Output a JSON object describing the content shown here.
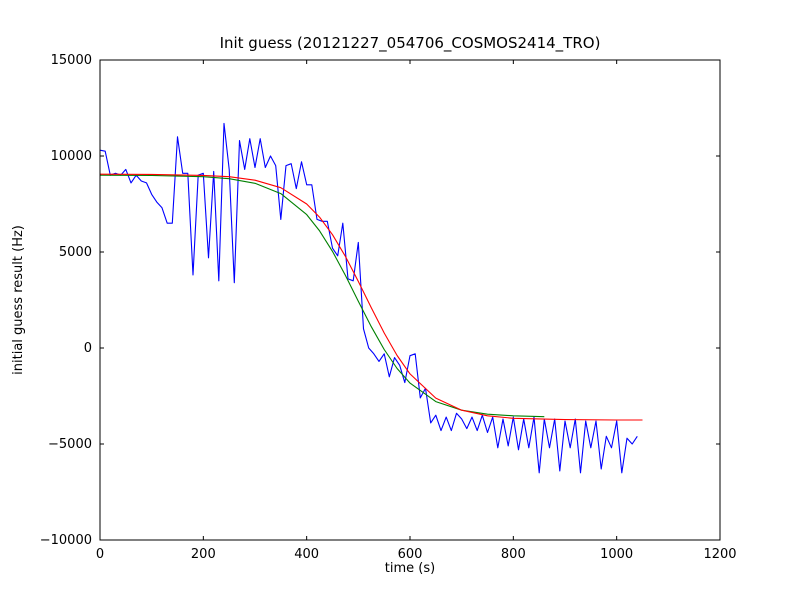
{
  "figure": {
    "title": "Init guess (20121227_054706_COSMOS2414_TRO)",
    "xlabel": "time (s)",
    "ylabel": "initial guess result (Hz)"
  },
  "chart_data": {
    "type": "line",
    "title": "Init guess (20121227_054706_COSMOS2414_TRO)",
    "xlabel": "time (s)",
    "ylabel": "initial guess result (Hz)",
    "xlim": [
      0,
      1200
    ],
    "ylim": [
      -10000,
      15000
    ],
    "xticks": [
      0,
      200,
      400,
      600,
      800,
      1000,
      1200
    ],
    "yticks": [
      -10000,
      -5000,
      0,
      5000,
      10000,
      15000
    ],
    "xtick_labels": [
      "0",
      "200",
      "400",
      "600",
      "800",
      "1000",
      "1200"
    ],
    "ytick_labels": [
      "−10000",
      "−5000",
      "0",
      "5000",
      "10000",
      "15000"
    ],
    "grid": false,
    "legend": null,
    "frame_color": "#000000",
    "series": [
      {
        "name": "measured-initial-guess",
        "color": "#0000ff",
        "x": [
          0,
          10,
          20,
          30,
          40,
          50,
          60,
          70,
          80,
          90,
          100,
          110,
          120,
          130,
          140,
          150,
          160,
          170,
          180,
          190,
          200,
          210,
          220,
          230,
          240,
          250,
          260,
          270,
          280,
          290,
          300,
          310,
          320,
          330,
          340,
          350,
          360,
          370,
          380,
          390,
          400,
          410,
          420,
          430,
          440,
          450,
          460,
          470,
          480,
          490,
          500,
          510,
          520,
          530,
          540,
          550,
          560,
          570,
          580,
          590,
          600,
          610,
          620,
          630,
          640,
          650,
          660,
          670,
          680,
          690,
          700,
          710,
          720,
          730,
          740,
          750,
          760,
          770,
          780,
          790,
          800,
          810,
          820,
          830,
          840,
          850,
          860,
          870,
          880,
          890,
          900,
          910,
          920,
          930,
          940,
          950,
          960,
          970,
          980,
          990,
          1000,
          1010,
          1020,
          1030,
          1040
        ],
        "y": [
          10300,
          10250,
          9000,
          9100,
          9000,
          9300,
          8600,
          9000,
          8700,
          8600,
          8000,
          7600,
          7300,
          6500,
          6500,
          11000,
          9100,
          9100,
          3800,
          9000,
          9100,
          4700,
          9200,
          3500,
          11700,
          9300,
          3400,
          10800,
          9300,
          10900,
          9400,
          10900,
          9400,
          10000,
          9500,
          6700,
          9500,
          9600,
          8300,
          9700,
          8500,
          8500,
          6700,
          6600,
          6600,
          5200,
          4800,
          6500,
          3600,
          3500,
          5500,
          1000,
          0,
          -300,
          -700,
          -300,
          -1500,
          -500,
          -900,
          -1800,
          -400,
          -300,
          -2600,
          -2100,
          -3900,
          -3500,
          -4300,
          -3600,
          -4300,
          -3400,
          -3700,
          -4200,
          -3600,
          -4300,
          -3500,
          -4400,
          -3600,
          -5200,
          -3700,
          -5100,
          -3600,
          -5300,
          -3700,
          -5200,
          -3600,
          -6500,
          -3700,
          -5200,
          -3700,
          -6400,
          -3800,
          -5200,
          -3700,
          -6500,
          -3800,
          -5200,
          -3800,
          -6300,
          -4600,
          -5200,
          -3800,
          -6500,
          -4700,
          -5000,
          -4600
        ]
      },
      {
        "name": "fit-green",
        "color": "#008000",
        "x": [
          0,
          100,
          200,
          250,
          300,
          350,
          400,
          425,
          450,
          475,
          500,
          525,
          550,
          575,
          600,
          650,
          700,
          750,
          800,
          860
        ],
        "y": [
          9000,
          8990,
          8920,
          8820,
          8580,
          8040,
          6950,
          6100,
          5030,
          3780,
          2430,
          1110,
          -80,
          -1070,
          -1830,
          -2790,
          -3240,
          -3450,
          -3530,
          -3580
        ]
      },
      {
        "name": "fit-red",
        "color": "#ff0000",
        "x": [
          0,
          100,
          200,
          250,
          300,
          350,
          400,
          425,
          450,
          475,
          500,
          525,
          550,
          575,
          600,
          650,
          700,
          750,
          800,
          900,
          1000,
          1050
        ],
        "y": [
          9050,
          9040,
          8990,
          8920,
          8740,
          8350,
          7500,
          6810,
          5900,
          4770,
          3470,
          2100,
          780,
          -390,
          -1350,
          -2610,
          -3240,
          -3530,
          -3660,
          -3730,
          -3750,
          -3750
        ]
      }
    ]
  }
}
